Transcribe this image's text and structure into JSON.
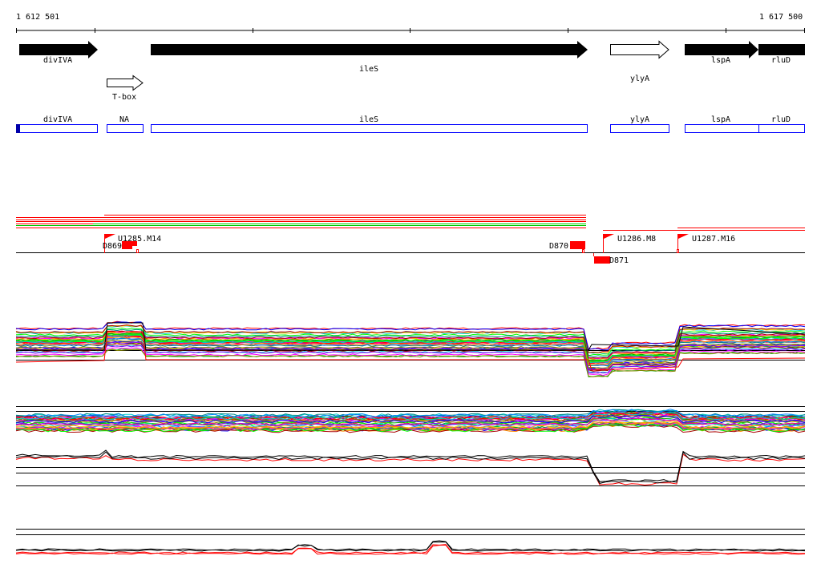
{
  "ruler": {
    "start_label": "1 612 501",
    "end_label": "1 617 500"
  },
  "genes": [
    {
      "name": "divIVA",
      "strand": "+",
      "fill": "filled"
    },
    {
      "name": "T-box",
      "strand": "+",
      "fill": "open"
    },
    {
      "name": "ileS",
      "strand": "+",
      "fill": "filled"
    },
    {
      "name": "ylyA",
      "strand": "+",
      "fill": "open"
    },
    {
      "name": "lspA",
      "strand": "+",
      "fill": "filled"
    },
    {
      "name": "rluD",
      "strand": "+",
      "fill": "filled"
    }
  ],
  "annotation_boxes": [
    {
      "name": "divIVA"
    },
    {
      "name": "NA"
    },
    {
      "name": "ileS"
    },
    {
      "name": "ylyA"
    },
    {
      "name": "lspA"
    },
    {
      "name": "rluD"
    }
  ],
  "markers": {
    "flags": [
      "U1285.M14",
      "U1286.M8",
      "U1287.M16"
    ],
    "blocks": [
      "D869",
      "D870",
      "D871"
    ]
  },
  "colors": {
    "gene": "#000000",
    "annotation_box": "#0000ff",
    "feature": "#ff0000",
    "alt_feature": "#00cc00",
    "palette": [
      "#ff0000",
      "#00aa00",
      "#0000ff",
      "#ff00ff",
      "#00cccc",
      "#ffcc00",
      "#ff8800",
      "#8800ff",
      "#008888",
      "#888800",
      "#aa0000",
      "#00ff00",
      "#0088ff",
      "#ff0088"
    ]
  }
}
